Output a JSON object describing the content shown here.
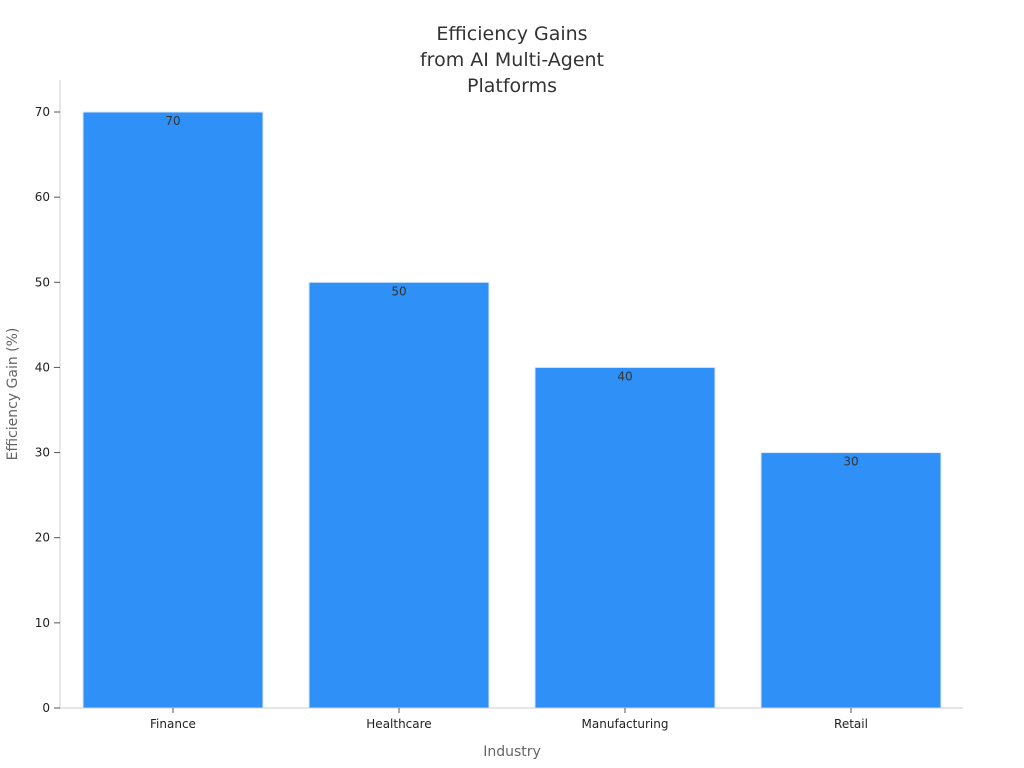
{
  "chart_data": {
    "type": "bar",
    "title": [
      "Efficiency Gains",
      "from AI Multi-Agent",
      "Platforms"
    ],
    "categories": [
      "Finance",
      "Healthcare",
      "Manufacturing",
      "Retail"
    ],
    "values": [
      70,
      50,
      40,
      30
    ],
    "data_labels": [
      "70",
      "50",
      "40",
      "30"
    ],
    "xlabel": "Industry",
    "ylabel": "Efficiency Gain (%)",
    "ylim": [
      0,
      70
    ],
    "yticks": [
      0,
      10,
      20,
      30,
      40,
      50,
      60,
      70
    ],
    "grid": false,
    "legend": "none",
    "colors": {
      "bar_fill": "#2f91f7",
      "bar_edge": "#dce8f5",
      "axis": "#cccccc",
      "tick_text": "#222222",
      "title_text": "#333333",
      "label_text": "#666666"
    }
  }
}
